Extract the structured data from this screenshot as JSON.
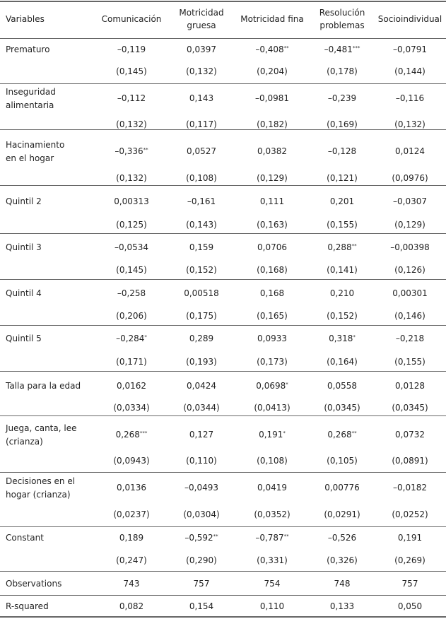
{
  "header": [
    [
      "Variables"
    ],
    [
      "Comunicación"
    ],
    [
      "Motricidad",
      "gruesa"
    ],
    [
      "Motricidad fina"
    ],
    [
      "Resolución",
      "problemas"
    ],
    [
      "Socioindividual"
    ]
  ],
  "rows": [
    {
      "label": [
        "Prematuro"
      ],
      "coef": [
        "–0,119",
        "0,0397",
        {
          "v": "–0,408",
          "stars": "**"
        },
        {
          "v": "–0,481",
          "stars": "***"
        },
        "–0,0791"
      ],
      "se": [
        "(0,145)",
        "(0,132)",
        "(0,204)",
        "(0,178)",
        "(0,144)"
      ]
    },
    {
      "label": [
        "Inseguridad",
        "alimentaria"
      ],
      "coef": [
        "–0,112",
        "0,143",
        "–0,0981",
        "–0,239",
        "–0,116"
      ],
      "se": [
        "(0,132)",
        "(0,117)",
        "(0,182)",
        "(0,169)",
        "(0,132)"
      ]
    },
    {
      "label": [
        "Hacinamiento",
        "en el hogar"
      ],
      "coef": [
        {
          "v": "–0,336",
          "stars": "**"
        },
        "0,0527",
        "0,0382",
        "–0,128",
        "0,0124"
      ],
      "se": [
        "(0,132)",
        "(0,108)",
        "(0,129)",
        "(0,121)",
        "(0,0976)"
      ]
    },
    {
      "label": [
        "Quintil 2"
      ],
      "coef": [
        "0,00313",
        "–0,161",
        "0,111",
        "0,201",
        "–0,0307"
      ],
      "se": [
        "(0,125)",
        "(0,143)",
        "(0,163)",
        "(0,155)",
        "(0,129)"
      ]
    },
    {
      "label": [
        "Quintil 3"
      ],
      "coef": [
        "–0,0534",
        "0,159",
        "0,0706",
        {
          "v": "0,288",
          "stars": "**"
        },
        "–0,00398"
      ],
      "se": [
        "(0,145)",
        "(0,152)",
        "(0,168)",
        "(0,141)",
        "(0,126)"
      ]
    },
    {
      "label": [
        "Quintil 4"
      ],
      "coef": [
        "–0,258",
        "0,00518",
        "0,168",
        "0,210",
        "0,00301"
      ],
      "se": [
        "(0,206)",
        "(0,175)",
        "(0,165)",
        "(0,152)",
        "(0,146)"
      ]
    },
    {
      "label": [
        "Quintil 5"
      ],
      "coef": [
        {
          "v": "–0,284",
          "stars": "*"
        },
        "0,289",
        "0,0933",
        {
          "v": "0,318",
          "stars": "*"
        },
        "–0,218"
      ],
      "se": [
        "(0,171)",
        "(0,193)",
        "(0,173)",
        "(0,164)",
        "(0,155)"
      ]
    },
    {
      "label": [
        "Talla para la edad"
      ],
      "coef": [
        "0,0162",
        "0,0424",
        {
          "v": "0,0698",
          "stars": "*"
        },
        "0,0558",
        "0,0128"
      ],
      "se": [
        "(0,0334)",
        "(0,0344)",
        "(0,0413)",
        "(0,0345)",
        "(0,0345)"
      ]
    },
    {
      "label": [
        "Juega, canta, lee",
        "(crianza)"
      ],
      "coef": [
        {
          "v": "0,268",
          "stars": "***"
        },
        "0,127",
        {
          "v": "0,191",
          "stars": "*"
        },
        {
          "v": "0,268",
          "stars": "**"
        },
        "0,0732"
      ],
      "se": [
        "(0,0943)",
        "(0,110)",
        "(0,108)",
        "(0,105)",
        "(0,0891)"
      ]
    },
    {
      "label": [
        "Decisiones en el",
        "hogar (crianza)"
      ],
      "coef": [
        "0,0136",
        "–0,0493",
        "0,0419",
        "0,00776",
        "–0,0182"
      ],
      "se": [
        "(0,0237)",
        "(0,0304)",
        "(0,0352)",
        "(0,0291)",
        "(0,0252)"
      ]
    },
    {
      "label": [
        "Constant"
      ],
      "coef": [
        "0,189",
        {
          "v": "–0,592",
          "stars": "**"
        },
        {
          "v": "–0,787",
          "stars": "**"
        },
        "–0,526",
        "0,191"
      ],
      "se": [
        "(0,247)",
        "(0,290)",
        "(0,331)",
        "(0,326)",
        "(0,269)"
      ]
    }
  ],
  "stats": [
    {
      "label": "Observations",
      "values": [
        "743",
        "757",
        "754",
        "748",
        "757"
      ]
    },
    {
      "label": "R-squared",
      "values": [
        "0,082",
        "0,154",
        "0,110",
        "0,133",
        "0,050"
      ]
    }
  ]
}
